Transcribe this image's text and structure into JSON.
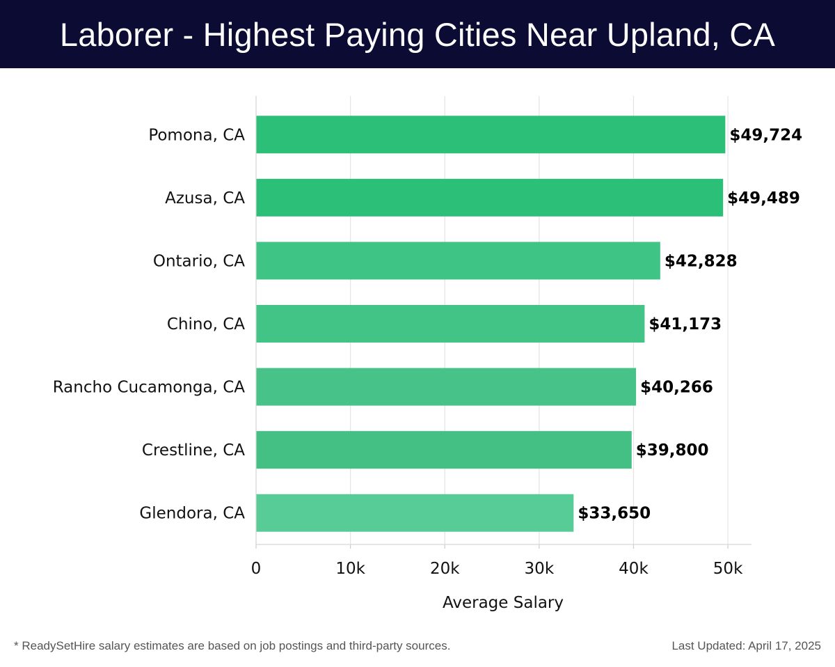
{
  "header": {
    "title": "Laborer - Highest Paying Cities Near Upland, CA"
  },
  "footer": {
    "note": "* ReadySetHire salary estimates are based on job postings and third-party sources.",
    "updated": "Last Updated: April 17, 2025"
  },
  "chart_data": {
    "type": "bar",
    "orientation": "horizontal",
    "categories": [
      "Pomona, CA",
      "Azusa, CA",
      "Ontario, CA",
      "Chino, CA",
      "Rancho Cucamonga, CA",
      "Crestline, CA",
      "Glendora, CA"
    ],
    "values": [
      49724,
      49489,
      42828,
      41173,
      40266,
      39800,
      33650
    ],
    "value_labels": [
      "$49,724",
      "$49,489",
      "$42,828",
      "$41,173",
      "$40,266",
      "$39,800",
      "$33,650"
    ],
    "xlabel": "Average Salary",
    "xlim": [
      0,
      52500
    ],
    "xticks": [
      0,
      10000,
      20000,
      30000,
      40000,
      50000
    ],
    "xtick_labels": [
      "0",
      "10k",
      "20k",
      "30k",
      "40k",
      "50k"
    ],
    "grid": true,
    "bar_colors": [
      "#2bbf77",
      "#2bbf77",
      "#3ec585",
      "#43c487",
      "#47c288",
      "#45c085",
      "#58cc96"
    ]
  }
}
